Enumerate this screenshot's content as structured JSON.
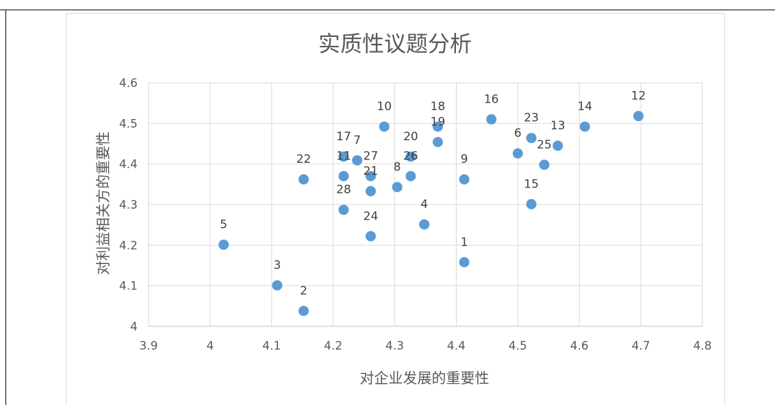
{
  "chart_data": {
    "type": "scatter",
    "title": "实质性议题分析",
    "xlabel": "对企业发展的重要性",
    "ylabel": "对利益相关方的重要性",
    "xlim": [
      3.9,
      4.8
    ],
    "ylim": [
      4.0,
      4.6
    ],
    "x_ticks": [
      "3.9",
      "4",
      "4.1",
      "4.2",
      "4.3",
      "4.4",
      "4.5",
      "4.6",
      "4.7",
      "4.8"
    ],
    "y_ticks": [
      "4",
      "4.1",
      "4.2",
      "4.3",
      "4.4",
      "4.5",
      "4.6"
    ],
    "grid": true,
    "point_color": "#5b9bd5",
    "points": [
      {
        "label": "1",
        "x": 4.413,
        "y": 4.158
      },
      {
        "label": "2",
        "x": 4.152,
        "y": 4.038
      },
      {
        "label": "3",
        "x": 4.109,
        "y": 4.101
      },
      {
        "label": "4",
        "x": 4.348,
        "y": 4.251
      },
      {
        "label": "5",
        "x": 4.022,
        "y": 4.201
      },
      {
        "label": "6",
        "x": 4.5,
        "y": 4.426
      },
      {
        "label": "7",
        "x": 4.239,
        "y": 4.409
      },
      {
        "label": "8",
        "x": 4.304,
        "y": 4.343
      },
      {
        "label": "9",
        "x": 4.413,
        "y": 4.362
      },
      {
        "label": "10",
        "x": 4.283,
        "y": 4.492
      },
      {
        "label": "11",
        "x": 4.217,
        "y": 4.37
      },
      {
        "label": "12",
        "x": 4.696,
        "y": 4.518
      },
      {
        "label": "13",
        "x": 4.565,
        "y": 4.445
      },
      {
        "label": "14",
        "x": 4.609,
        "y": 4.492
      },
      {
        "label": "15",
        "x": 4.522,
        "y": 4.301
      },
      {
        "label": "16",
        "x": 4.457,
        "y": 4.51
      },
      {
        "label": "17",
        "x": 4.217,
        "y": 4.418
      },
      {
        "label": "18",
        "x": 4.37,
        "y": 4.492
      },
      {
        "label": "19",
        "x": 4.37,
        "y": 4.454
      },
      {
        "label": "20",
        "x": 4.326,
        "y": 4.418
      },
      {
        "label": "21",
        "x": 4.261,
        "y": 4.333
      },
      {
        "label": "22",
        "x": 4.152,
        "y": 4.362
      },
      {
        "label": "23",
        "x": 4.522,
        "y": 4.464
      },
      {
        "label": "24",
        "x": 4.261,
        "y": 4.222
      },
      {
        "label": "25",
        "x": 4.543,
        "y": 4.398
      },
      {
        "label": "26",
        "x": 4.326,
        "y": 4.37
      },
      {
        "label": "27",
        "x": 4.261,
        "y": 4.37
      },
      {
        "label": "28",
        "x": 4.217,
        "y": 4.287
      }
    ]
  }
}
